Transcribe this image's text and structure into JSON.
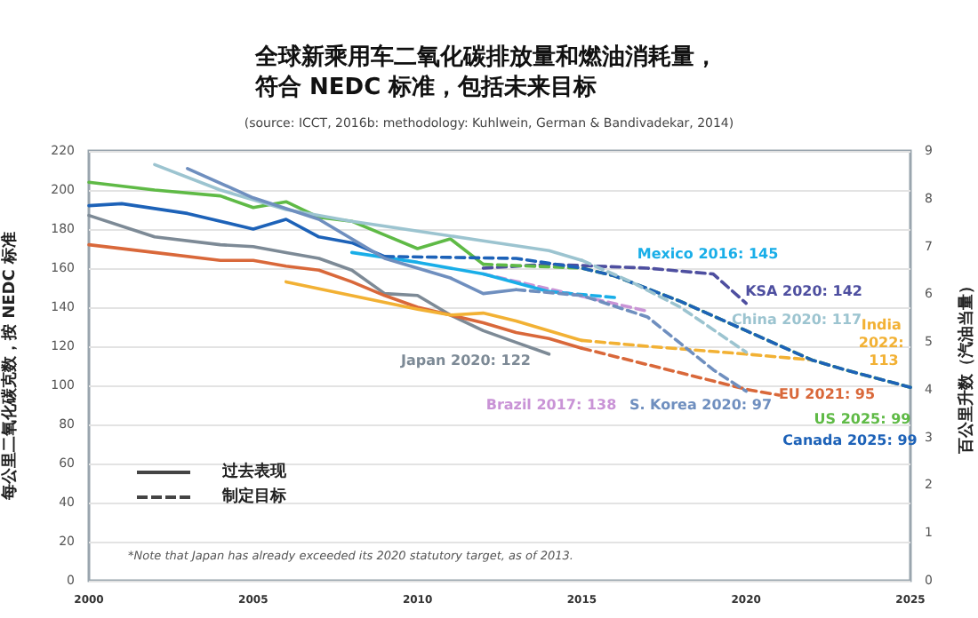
{
  "chart_data": {
    "type": "line",
    "title": "全球新乘用车二氧化碳排放量和燃油消耗量，符合 NEDC 标准，包括未来目标",
    "subtitle": "(source: ICCT, 2016b: methodology: Kuhlwein, German & Bandivadekar, 2014)",
    "ylabel": "每公里二氧化碳克数，按 NEDC 标准",
    "y2label": "百公里升数（汽油当量）",
    "xlim": [
      2000,
      2025
    ],
    "xticks": [
      2000,
      2005,
      2010,
      2015,
      2020,
      2025
    ],
    "ylim": [
      0,
      220
    ],
    "yticks": [
      0,
      20,
      40,
      60,
      80,
      100,
      120,
      140,
      160,
      180,
      200,
      220
    ],
    "y2lim": [
      0,
      9
    ],
    "y2ticks": [
      0,
      1,
      2,
      3,
      4,
      5,
      6,
      7,
      8,
      9
    ],
    "grid": "y",
    "legend": false,
    "line_style": "solid",
    "annotations": [
      "*Note that Japan has already exceeded its 2020 statutory target, as of 2013.",
      "过去表现",
      "制定目标"
    ],
    "series": [
      {
        "name": "Japan 2020: 122",
        "color": "#7d8a96",
        "x": [
          2000,
          2002,
          2004,
          2005,
          2006,
          2007,
          2008,
          2009,
          2010,
          2011,
          2012,
          2013,
          2014
        ],
        "values": [
          187,
          176,
          172,
          171,
          168,
          165,
          159,
          147,
          146,
          136,
          128,
          122,
          116
        ]
      },
      {
        "color": "#d9683a",
        "x": [
          2000,
          2002,
          2004,
          2005,
          2006,
          2007,
          2008,
          2009,
          2010,
          2011,
          2012,
          2013,
          2014,
          2015
        ],
        "values": [
          172,
          168,
          164,
          164,
          161,
          159,
          153,
          146,
          140,
          136,
          132,
          127,
          124,
          119
        ]
      },
      {
        "name": "EU 2021: 95",
        "color": "#d9683a",
        "line_style": "dashed",
        "x": [
          2015,
          2020,
          2021
        ],
        "values": [
          119,
          98,
          95
        ]
      },
      {
        "color": "#f2b134",
        "x": [
          2006,
          2010,
          2011,
          2012,
          2013,
          2014,
          2015
        ],
        "values": [
          153,
          139,
          136,
          137,
          133,
          128,
          123
        ]
      },
      {
        "name": "India 2022: 113",
        "color": "#f2b134",
        "line_style": "dashed",
        "x": [
          2015,
          2017,
          2020,
          2022
        ],
        "values": [
          123,
          120,
          116,
          113
        ]
      },
      {
        "name": "Brazil 2017: 138",
        "color": "#c993d6",
        "line_style": "dashed",
        "x": [
          2012,
          2017
        ],
        "values": [
          157,
          138
        ]
      },
      {
        "name": "KSA 2020: 142",
        "color": "#4e4fa0",
        "line_style": "dashed",
        "x": [
          2012,
          2014,
          2017,
          2019,
          2020
        ],
        "values": [
          160,
          162,
          160,
          157,
          142
        ]
      },
      {
        "color": "#19aee8",
        "x": [
          2008,
          2010,
          2012,
          2014
        ],
        "values": [
          168,
          163,
          157,
          148
        ]
      },
      {
        "name": "Mexico 2016: 145",
        "color": "#19aee8",
        "line_style": "dashed",
        "x": [
          2014,
          2016
        ],
        "values": [
          148,
          145
        ]
      },
      {
        "color": "#5fba46",
        "x": [
          2000,
          2002,
          2004,
          2005,
          2006,
          2007,
          2008,
          2009,
          2010,
          2011,
          2012
        ],
        "values": [
          204,
          200,
          197,
          191,
          194,
          186,
          184,
          177,
          170,
          175,
          162
        ]
      },
      {
        "name": "US 2025: 99",
        "color": "#5fba46",
        "line_style": "dashed",
        "x": [
          2012,
          2015,
          2016,
          2018,
          2020,
          2022,
          2023,
          2025
        ],
        "values": [
          162,
          160,
          156,
          143,
          128,
          113,
          108,
          99
        ]
      },
      {
        "color": "#1d62b8",
        "x": [
          2000,
          2001,
          2003,
          2005,
          2006,
          2007,
          2008,
          2009
        ],
        "values": [
          192,
          193,
          188,
          180,
          185,
          176,
          173,
          166
        ]
      },
      {
        "name": "Canada 2025: 99",
        "color": "#1d62b8",
        "line_style": "dashed",
        "x": [
          2009,
          2013,
          2015,
          2016,
          2018,
          2020,
          2022,
          2023,
          2025
        ],
        "values": [
          166,
          165,
          160,
          156,
          143,
          128,
          113,
          108,
          99
        ]
      },
      {
        "color": "#9cc4d0",
        "x": [
          2002,
          2004,
          2006,
          2008,
          2010,
          2012,
          2014,
          2015
        ],
        "values": [
          213,
          200,
          190,
          184,
          179,
          174,
          169,
          164
        ]
      },
      {
        "name": "China 2020: 117",
        "color": "#9cc4d0",
        "line_style": "dashed",
        "x": [
          2015,
          2016.5,
          2018,
          2020
        ],
        "values": [
          164,
          153,
          140,
          117
        ]
      },
      {
        "color": "#6f8fbf",
        "x": [
          2003,
          2005,
          2007,
          2009,
          2011,
          2012,
          2013
        ],
        "values": [
          211,
          196,
          185,
          165,
          155,
          147,
          149
        ]
      },
      {
        "name": "S. Korea 2020: 97",
        "color": "#6f8fbf",
        "line_style": "dashed",
        "x": [
          2013,
          2015,
          2017,
          2019,
          2020
        ],
        "values": [
          149,
          146,
          135,
          108,
          97
        ]
      }
    ]
  }
}
